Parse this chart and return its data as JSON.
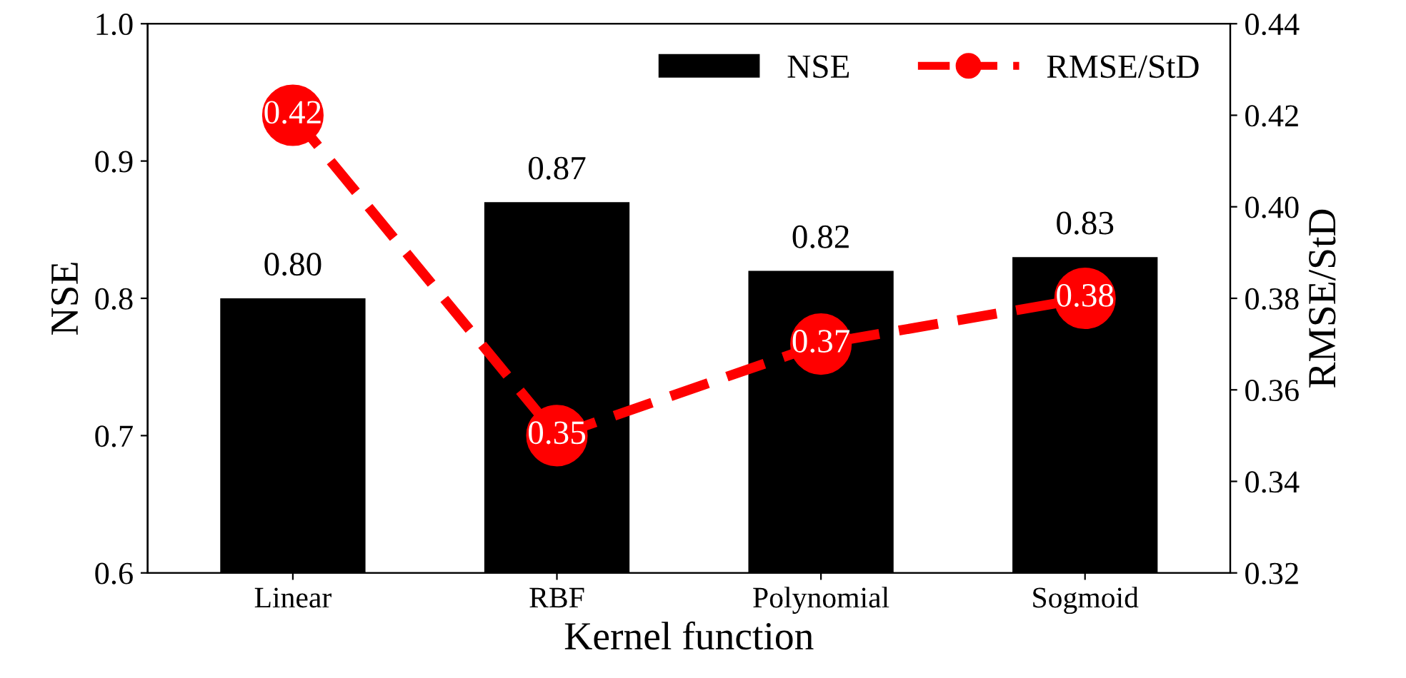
{
  "chart_data": {
    "type": "bar",
    "xlabel": "Kernel function",
    "ylabel": "NSE",
    "y2label": "RMSE/StD",
    "categories": [
      "Linear",
      "RBF",
      "Polynomial",
      "Sogmoid"
    ],
    "series": [
      {
        "name": "NSE",
        "color": "#000000",
        "values": [
          0.8,
          0.87,
          0.82,
          0.83
        ],
        "value_labels": [
          "0.80",
          "0.87",
          "0.82",
          "0.83"
        ]
      },
      {
        "name": "RMSE/StD",
        "type": "line",
        "axis": "y2",
        "color": "#ff0000",
        "marker": "circle",
        "line_style": "dashed",
        "values": [
          0.42,
          0.35,
          0.37,
          0.38
        ],
        "value_labels": [
          "0.42",
          "0.35",
          "0.37",
          "0.38"
        ]
      }
    ],
    "ylim": [
      0.6,
      1.0
    ],
    "yticks": [
      {
        "value": 0.6,
        "label": "0.6"
      },
      {
        "value": 0.7,
        "label": "0.7"
      },
      {
        "value": 0.8,
        "label": "0.8"
      },
      {
        "value": 0.9,
        "label": "0.9"
      },
      {
        "value": 1.0,
        "label": "1.0"
      }
    ],
    "y2lim": [
      0.32,
      0.44
    ],
    "y2ticks": [
      0.32,
      0.34,
      0.36,
      0.38,
      {
        "value": 0.4,
        "label": "0.40"
      },
      0.42,
      0.44
    ],
    "grid": false,
    "legend": "top right"
  }
}
